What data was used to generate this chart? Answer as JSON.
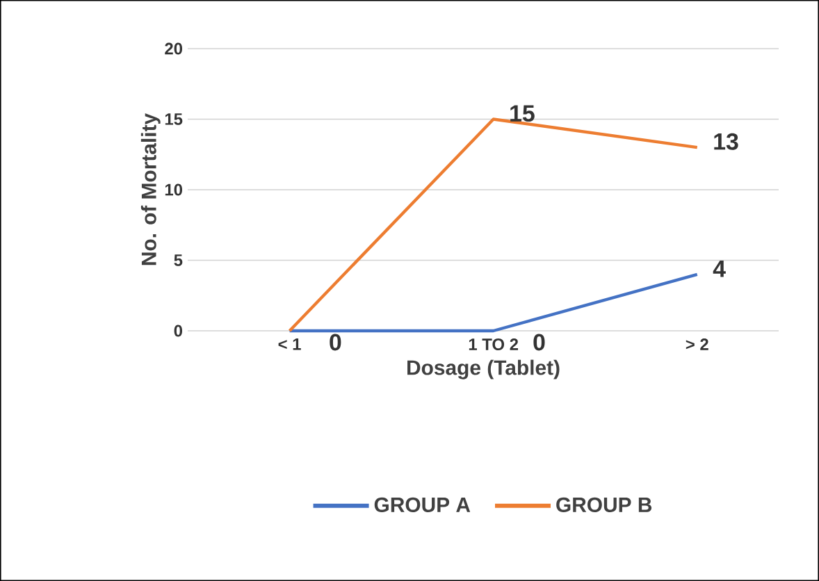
{
  "chart_data": {
    "type": "line",
    "xlabel": "Dosage (Tablet)",
    "ylabel": "No. of Mortality",
    "categories": [
      "< 1",
      "1 TO 2",
      "> 2"
    ],
    "series": [
      {
        "name": "GROUP A",
        "color": "#4472c4",
        "values": [
          0,
          0,
          4
        ],
        "value_labels": [
          "0",
          "0",
          "4"
        ]
      },
      {
        "name": "GROUP B",
        "color": "#ed7d31",
        "values": [
          0,
          15,
          13
        ],
        "value_labels": [
          null,
          "15",
          "13"
        ]
      }
    ],
    "ylim": [
      0,
      20
    ],
    "yticks": [
      0,
      5,
      10,
      15,
      20
    ],
    "grid": "y",
    "legend": "bottom"
  }
}
